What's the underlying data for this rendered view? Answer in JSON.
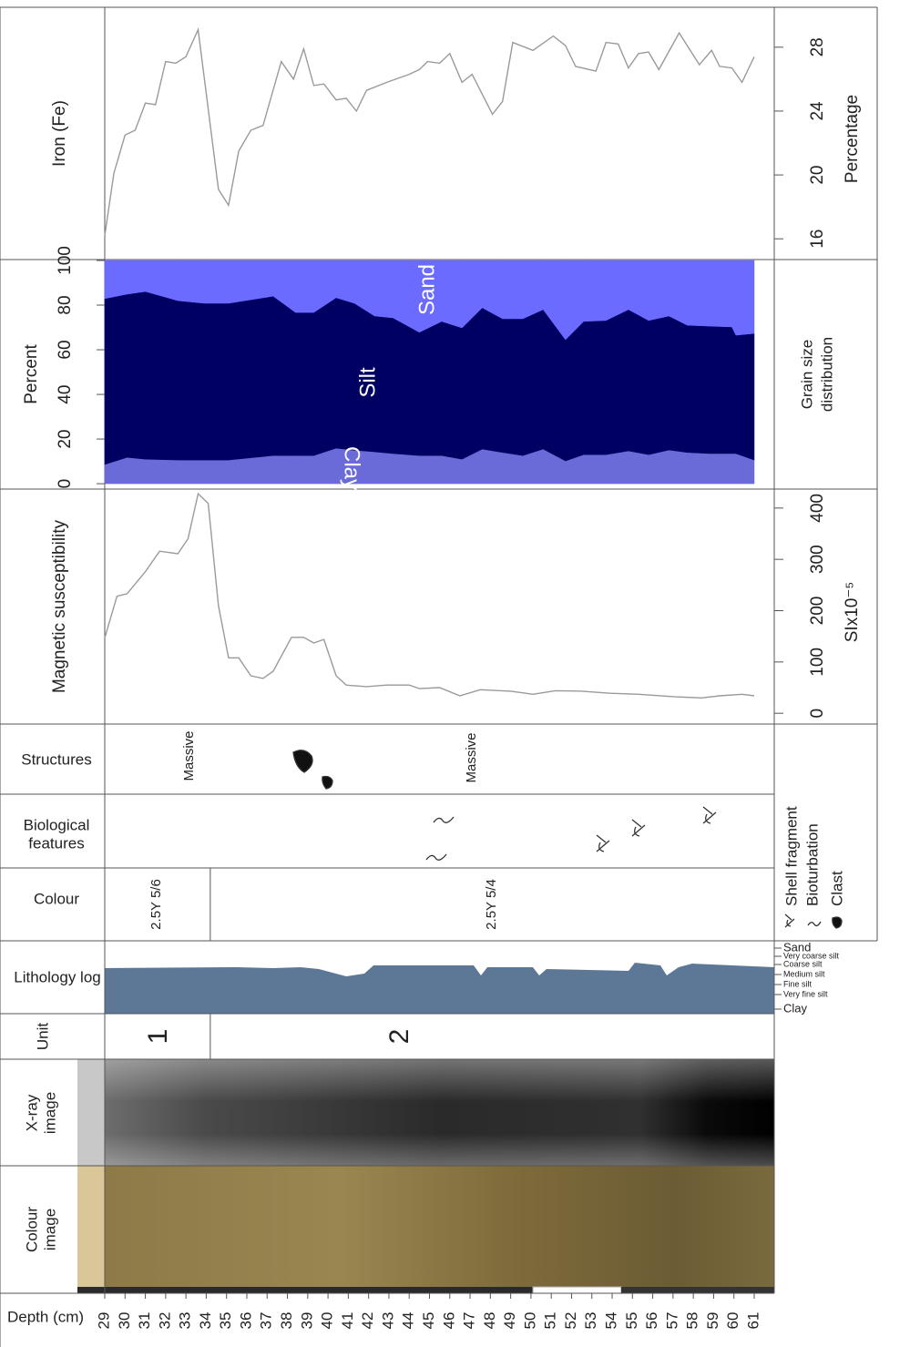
{
  "depth_axis": {
    "label": "Depth (cm)",
    "xlim": [
      29,
      61
    ],
    "xticks": [
      29,
      30,
      31,
      32,
      33,
      34,
      35,
      36,
      37,
      38,
      39,
      40,
      41,
      42,
      43,
      44,
      45,
      46,
      47,
      48,
      49,
      50,
      51,
      52,
      53,
      54,
      55,
      56,
      57,
      58,
      59,
      60,
      61
    ]
  },
  "chart_data": [
    {
      "type": "line",
      "title": "Iron (Fe)",
      "y_label": "Percentage",
      "color": "#9a9a9a",
      "x": [
        29,
        29.45,
        30,
        30.5,
        31,
        31.5,
        32,
        32.5,
        33,
        33.6,
        34.6,
        35.1,
        35.6,
        36.2,
        36.8,
        37.7,
        38.3,
        38.8,
        39.3,
        39.8,
        40.4,
        40.9,
        41.4,
        41.9,
        42.9,
        44,
        44.5,
        44.9,
        45.5,
        46,
        46.6,
        47.1,
        48.1,
        48.6,
        49.1,
        50.1,
        51.1,
        51.7,
        52.2,
        53.2,
        53.7,
        54.3,
        54.8,
        55.3,
        55.8,
        56.3,
        57.3,
        58.3,
        58.9,
        59.3,
        59.9,
        60.4,
        61
      ],
      "values": [
        16.2,
        20.1,
        22.5,
        22.8,
        24.5,
        24.4,
        27.1,
        27,
        27.4,
        29.1,
        19.1,
        18.1,
        21.5,
        22.8,
        23.1,
        27.1,
        26,
        27.9,
        25.6,
        25.7,
        24.7,
        24.8,
        24,
        25.3,
        25.8,
        26.3,
        26.6,
        27.1,
        27,
        27.6,
        25.8,
        26.3,
        23.8,
        24.6,
        28.3,
        27.8,
        28.7,
        28.1,
        26.8,
        26.5,
        28.3,
        28.2,
        26.7,
        27.6,
        27.7,
        26.6,
        28.9,
        26.9,
        27.8,
        26.8,
        26.7,
        25.8,
        27.4
      ],
      "ylim": [
        14.7,
        30.5
      ],
      "yticks": [
        16,
        20,
        24,
        28
      ]
    },
    {
      "type": "stacked_area",
      "title": [
        "Grain size",
        "distribution"
      ],
      "y_label": "Percent",
      "x": [
        29,
        30.1,
        31,
        32.6,
        33.9,
        35.1,
        37.3,
        38.4,
        39.3,
        40.4,
        41.3,
        42.3,
        43.2,
        44.5,
        45.6,
        46.6,
        47.6,
        48.6,
        49.6,
        50.6,
        51.7,
        52.6,
        53.7,
        54.8,
        55.8,
        56.8,
        57.7,
        58.8,
        59.9,
        60.1,
        61
      ],
      "series": [
        {
          "name": "Clay",
          "color": "#6a6ad8",
          "values": [
            8.6,
            11.8,
            11,
            10.6,
            10.6,
            10.6,
            12.6,
            12.6,
            12.6,
            15.9,
            15,
            14.3,
            13.5,
            12.6,
            12.6,
            11,
            15.5,
            14,
            12.6,
            15.5,
            10.2,
            13,
            13,
            14.7,
            13,
            15.1,
            14,
            13.5,
            13.5,
            13.5,
            10.6
          ]
        },
        {
          "name": "Silt",
          "color": "#000062",
          "values": [
            74.3,
            73.1,
            75.1,
            71.4,
            70.2,
            70.2,
            71.4,
            64.1,
            64.1,
            67.4,
            65.8,
            60.8,
            60.8,
            55.2,
            60.1,
            58.8,
            63.3,
            59.9,
            61.3,
            62.5,
            54.3,
            59.7,
            60.1,
            63.3,
            60.1,
            60,
            57,
            57.1,
            56.7,
            53,
            56.7
          ]
        },
        {
          "name": "Sand",
          "color": "#6b6bff",
          "values": [
            17.1,
            15.1,
            13.9,
            18,
            19.2,
            19.2,
            16,
            23.3,
            23.3,
            16.7,
            19.2,
            24.9,
            25.7,
            32.2,
            27.3,
            30.2,
            21.2,
            26.1,
            26.1,
            22,
            35.5,
            27.3,
            26.9,
            22,
            26.9,
            24.9,
            29,
            29.4,
            29.8,
            33.5,
            32.7
          ]
        }
      ],
      "ylim": [
        -2.4,
        100.4
      ],
      "yticks": [
        0,
        20,
        40,
        60,
        80,
        100
      ]
    },
    {
      "type": "line",
      "title": "Magnetic susceptibility",
      "y_label": "SIx10⁻⁵",
      "color": "#9a9a9a",
      "x": [
        29,
        29.6,
        30.1,
        31,
        31.7,
        32.6,
        33.1,
        33.6,
        34.1,
        34.6,
        35.1,
        35.6,
        36.2,
        36.8,
        37.3,
        38.2,
        38.8,
        39.3,
        39.8,
        40.4,
        40.9,
        41.9,
        42.9,
        44,
        44.5,
        45.5,
        46.5,
        47.5,
        49,
        50.1,
        51.2,
        52.5,
        53.9,
        55.3,
        57.1,
        58.4,
        59.3,
        60.4,
        61
      ],
      "values": [
        147,
        228,
        233,
        276,
        316,
        311,
        340,
        428,
        409,
        210,
        108,
        108,
        73,
        68,
        82,
        148,
        148,
        137,
        144,
        73,
        55,
        52,
        55,
        55,
        48,
        50,
        34,
        46,
        43,
        37,
        44,
        43,
        39,
        37,
        32,
        30,
        34,
        37,
        34
      ],
      "ylim": [
        -21,
        437
      ],
      "yticks": [
        0,
        100,
        200,
        300,
        400
      ]
    }
  ],
  "rows": {
    "structures": {
      "label": "Structures",
      "texts": [
        "Massive",
        "Massive"
      ]
    },
    "biological": {
      "label": [
        "Biological",
        "features"
      ]
    },
    "colour": {
      "label": "Colour",
      "zones": [
        "2.5Y 5/6",
        "2.5Y 5/4"
      ],
      "boundaries": [
        34.2
      ]
    },
    "lithology": {
      "label": "Lithology log",
      "classes": [
        "Sand",
        "Very coarse silt",
        "Coarse silt",
        "Medium silt",
        "Fine silt",
        "Very fine silt",
        "Clay"
      ]
    },
    "unit": {
      "label": "Unit",
      "zones": [
        "1",
        "2"
      ],
      "boundaries": [
        34.2
      ]
    },
    "xray": {
      "label": [
        "X-ray",
        "image"
      ]
    },
    "colour_image": {
      "label": [
        "Colour",
        "image"
      ]
    }
  },
  "legend": [
    "Shell fragment",
    "Bioturbation",
    "Clast"
  ]
}
